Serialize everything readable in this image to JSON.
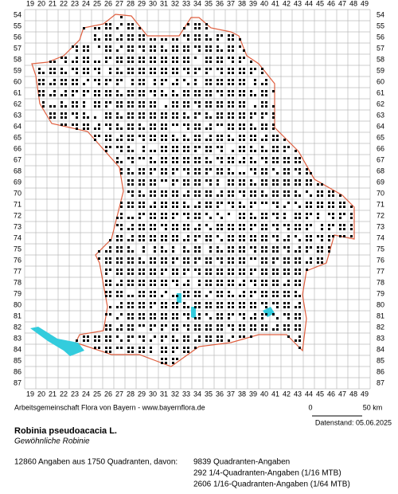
{
  "map": {
    "columns": [
      19,
      20,
      21,
      22,
      23,
      24,
      25,
      26,
      27,
      28,
      29,
      30,
      31,
      32,
      33,
      34,
      35,
      36,
      37,
      38,
      39,
      40,
      41,
      42,
      43,
      44,
      45,
      46,
      47,
      48,
      49
    ],
    "rows": [
      54,
      55,
      56,
      57,
      58,
      59,
      60,
      61,
      62,
      63,
      64,
      65,
      66,
      67,
      68,
      69,
      70,
      71,
      72,
      73,
      74,
      75,
      76,
      77,
      78,
      79,
      80,
      81,
      82,
      83,
      84,
      85,
      86,
      87
    ],
    "credit": "Arbeitsgemeinschaft Flora von Bayern - www.bayernflora.de",
    "scale_start": "0",
    "scale_end": "50 km",
    "date": "Datenstand: 05.06.2025"
  },
  "species": {
    "scientific_name": "Robinia pseudoacacia L.",
    "common_name": "Gewöhnliche Robinie"
  },
  "stats": {
    "summary": "12860 Angaben aus 1750 Quadranten, davon:",
    "details": [
      "9839 Quadranten-Angaben",
      "292 1/4-Quadranten-Angaben (1/16 MTB)",
      "2606 1/16-Quadranten-Angaben (1/64 MTB)"
    ]
  }
}
